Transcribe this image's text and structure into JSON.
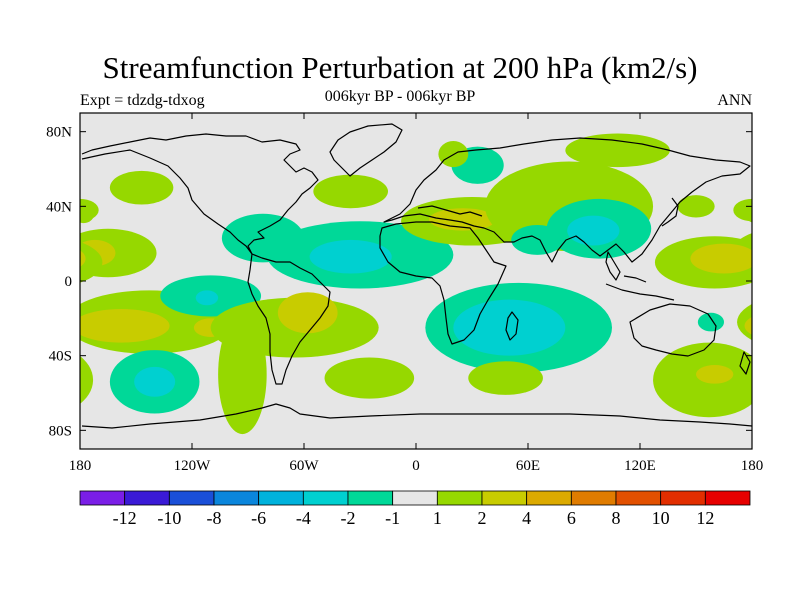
{
  "title": "Streamfunction Perturbation at 200 hPa (km2/s)",
  "subtitle": "006kyr BP - 006kyr BP",
  "left_label": "Expt = tdzdg-tdxog",
  "right_label": "ANN",
  "chart_data": {
    "type": "filled-contour-map",
    "units": "km2/s",
    "projection": "cylindrical equidistant",
    "xlim": [
      -180,
      180
    ],
    "ylim": [
      -90,
      90
    ],
    "x_ticks": [
      {
        "value": -180,
        "label": "180"
      },
      {
        "value": -120,
        "label": "120W"
      },
      {
        "value": -60,
        "label": "60W"
      },
      {
        "value": 0,
        "label": "0"
      },
      {
        "value": 60,
        "label": "60E"
      },
      {
        "value": 120,
        "label": "120E"
      },
      {
        "value": 180,
        "label": "180"
      }
    ],
    "y_ticks": [
      {
        "value": 80,
        "label": "80N"
      },
      {
        "value": 40,
        "label": "40N"
      },
      {
        "value": 0,
        "label": "0"
      },
      {
        "value": -40,
        "label": "40S"
      },
      {
        "value": -80,
        "label": "80S"
      }
    ],
    "colorbar": {
      "labels": [
        "-12",
        "-10",
        "-8",
        "-6",
        "-4",
        "-2",
        "-1",
        "1",
        "2",
        "4",
        "6",
        "8",
        "10",
        "12"
      ],
      "colors": [
        "#7a1ee6",
        "#3a1ad6",
        "#1a4fd8",
        "#0a86dc",
        "#00b2dc",
        "#00d0d0",
        "#00d898",
        "#e6e6e6",
        "#96d800",
        "#c8cc00",
        "#dcaa00",
        "#e07c00",
        "#e25000",
        "#e22e00",
        "#e60000"
      ]
    },
    "features": [
      {
        "lon": -147,
        "lat": 50,
        "rx": 17,
        "ry": 9,
        "level": 2
      },
      {
        "lon": -178,
        "lat": 37,
        "rx": 6,
        "ry": 6,
        "level": 2
      },
      {
        "lon": -165,
        "lat": 15,
        "rx": 26,
        "ry": 13,
        "level": 2
      },
      {
        "lon": -172,
        "lat": 15,
        "rx": 11,
        "ry": 7,
        "level": 4
      },
      {
        "lon": -143,
        "lat": -22,
        "rx": 45,
        "ry": 17,
        "level": 2
      },
      {
        "lon": -158,
        "lat": -24,
        "rx": 26,
        "ry": 9,
        "level": 4
      },
      {
        "lon": -110,
        "lat": -25,
        "rx": 9,
        "ry": 5,
        "level": 4
      },
      {
        "lon": -140,
        "lat": -54,
        "rx": 24,
        "ry": 17,
        "level": -2
      },
      {
        "lon": -140,
        "lat": -54,
        "rx": 11,
        "ry": 8,
        "level": -4
      },
      {
        "lon": -93,
        "lat": -50,
        "rx": 13,
        "ry": 32,
        "level": 2
      },
      {
        "lon": -110,
        "lat": -8,
        "rx": 27,
        "ry": 11,
        "level": -2
      },
      {
        "lon": -112,
        "lat": -9,
        "rx": 6,
        "ry": 4,
        "level": -4
      },
      {
        "lon": -82,
        "lat": 23,
        "rx": 22,
        "ry": 13,
        "level": -2
      },
      {
        "lon": -30,
        "lat": 14,
        "rx": 50,
        "ry": 18,
        "level": -2
      },
      {
        "lon": -35,
        "lat": 13,
        "rx": 22,
        "ry": 9,
        "level": -4
      },
      {
        "lon": -65,
        "lat": -25,
        "rx": 45,
        "ry": 16,
        "level": 2
      },
      {
        "lon": -58,
        "lat": -17,
        "rx": 16,
        "ry": 11,
        "level": 4
      },
      {
        "lon": -25,
        "lat": -52,
        "rx": 24,
        "ry": 11,
        "level": 2
      },
      {
        "lon": -35,
        "lat": 48,
        "rx": 20,
        "ry": 9,
        "level": 2
      },
      {
        "lon": 33,
        "lat": 62,
        "rx": 14,
        "ry": 10,
        "level": -2
      },
      {
        "lon": 30,
        "lat": 32,
        "rx": 38,
        "ry": 13,
        "level": 2
      },
      {
        "lon": 25,
        "lat": 33,
        "rx": 18,
        "ry": 6,
        "level": 4
      },
      {
        "lon": 20,
        "lat": 68,
        "rx": 8,
        "ry": 7,
        "level": 2
      },
      {
        "lon": 82,
        "lat": 40,
        "rx": 45,
        "ry": 24,
        "level": 2
      },
      {
        "lon": 98,
        "lat": 28,
        "rx": 28,
        "ry": 16,
        "level": -2
      },
      {
        "lon": 95,
        "lat": 27,
        "rx": 14,
        "ry": 8,
        "level": -4
      },
      {
        "lon": 65,
        "lat": 22,
        "rx": 14,
        "ry": 8,
        "level": -2
      },
      {
        "lon": 108,
        "lat": 70,
        "rx": 28,
        "ry": 9,
        "level": 2
      },
      {
        "lon": 150,
        "lat": 40,
        "rx": 10,
        "ry": 6,
        "level": 2
      },
      {
        "lon": 180,
        "lat": 38,
        "rx": 10,
        "ry": 6,
        "level": 2
      },
      {
        "lon": 160,
        "lat": 10,
        "rx": 32,
        "ry": 14,
        "level": 2
      },
      {
        "lon": 165,
        "lat": 12,
        "rx": 18,
        "ry": 8,
        "level": 4
      },
      {
        "lon": 55,
        "lat": -25,
        "rx": 50,
        "ry": 24,
        "level": -2
      },
      {
        "lon": 50,
        "lat": -25,
        "rx": 30,
        "ry": 15,
        "level": -4
      },
      {
        "lon": 48,
        "lat": -52,
        "rx": 20,
        "ry": 9,
        "level": 2
      },
      {
        "lon": 157,
        "lat": -53,
        "rx": 30,
        "ry": 20,
        "level": 2
      },
      {
        "lon": 160,
        "lat": -50,
        "rx": 10,
        "ry": 5,
        "level": 4
      },
      {
        "lon": 158,
        "lat": -22,
        "rx": 7,
        "ry": 5,
        "level": -2
      }
    ]
  }
}
